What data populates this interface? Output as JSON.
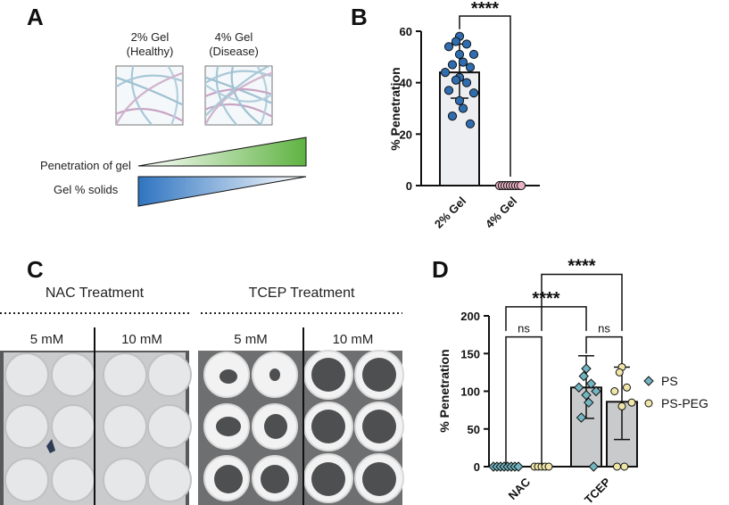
{
  "panels": {
    "a": {
      "letter": "A",
      "gel_2": {
        "line1": "2% Gel",
        "line2": "(Healthy)"
      },
      "gel_4": {
        "line1": "4% Gel",
        "line2": "(Disease)"
      },
      "penetration_label": "Penetration of gel",
      "solids_label": "Gel % solids"
    },
    "b": {
      "letter": "B"
    },
    "c": {
      "letter": "C",
      "nac_title": "NAC Treatment",
      "tcep_title": "TCEP Treatment",
      "nac_conc": [
        "5 mM",
        "10 mM"
      ],
      "tcep_conc": [
        "5 mM",
        "10 mM"
      ]
    },
    "d": {
      "letter": "D"
    }
  },
  "chart_data": [
    {
      "panel": "B",
      "type": "bar",
      "ylabel": "% Penetration",
      "ylim": [
        0,
        60
      ],
      "yticks": [
        0,
        20,
        40,
        60
      ],
      "categories": [
        "2% Gel",
        "4% Gel"
      ],
      "values": [
        44,
        0
      ],
      "error": [
        [
          34,
          55
        ],
        [
          0,
          0
        ]
      ],
      "points": [
        [
          58,
          56,
          55,
          54,
          51,
          51,
          48,
          47,
          46,
          44,
          42,
          41,
          40,
          37,
          36,
          33,
          30,
          27,
          24
        ],
        [
          0,
          0,
          0,
          0,
          0,
          0,
          0,
          0,
          0
        ]
      ],
      "point_colors": [
        "#2f6db0",
        "#e8b2c4"
      ],
      "significance": "****",
      "colors": {
        "bar": "#eceef1"
      }
    },
    {
      "panel": "D",
      "type": "bar",
      "ylabel": "% Penetration",
      "ylim": [
        0,
        200
      ],
      "yticks": [
        0,
        50,
        100,
        150,
        200
      ],
      "categories": [
        "NAC",
        "TCEP"
      ],
      "series": [
        {
          "name": "PS",
          "values": [
            0,
            105
          ],
          "error": [
            [
              0,
              0
            ],
            [
              64,
              147
            ]
          ],
          "points": [
            [
              0,
              0,
              0,
              0,
              0,
              0,
              0,
              0
            ],
            [
              130,
              120,
              110,
              105,
              100,
              95,
              85,
              65,
              0
            ]
          ],
          "marker": "diamond",
          "color": "#72b5c1"
        },
        {
          "name": "PS-PEG",
          "values": [
            0,
            86
          ],
          "error": [
            [
              0,
              0
            ],
            [
              36,
              132
            ]
          ],
          "points": [
            [
              0,
              0,
              0,
              0,
              0
            ],
            [
              132,
              125,
              105,
              100,
              85,
              80,
              0,
              0
            ]
          ],
          "marker": "circle",
          "color": "#efe6a8"
        }
      ],
      "comparisons": [
        {
          "label": "ns"
        },
        {
          "label": "ns"
        },
        {
          "label": "****"
        },
        {
          "label": "****"
        }
      ],
      "legend_position": "right",
      "colors": {
        "bar": "#c9cacc"
      }
    }
  ]
}
